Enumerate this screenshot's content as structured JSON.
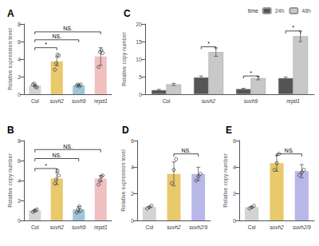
{
  "chart_data": [
    {
      "type": "bar",
      "title": "A",
      "ylabel": "Relative expression level",
      "categories": [
        "Col",
        "suvh2",
        "suvh9",
        "nrpd1"
      ],
      "values": [
        1.0,
        3.75,
        1.0,
        4.3
      ],
      "colors": [
        "#d3d3d3",
        "#e8c96b",
        "#9ec6d8",
        "#f0c0c0"
      ],
      "error": [
        0.1,
        0.5,
        0.1,
        1.0
      ],
      "dots": [
        {
          "values": [
            1.1,
            1.2,
            0.85,
            0.8
          ],
          "line_style": "solid"
        },
        {
          "values": [
            2.8,
            3.5,
            4.5,
            4.4
          ]
        },
        {
          "values": [
            1.0,
            1.1,
            0.9,
            1.1
          ],
          "line_style": "solid"
        },
        {
          "values": [
            3.1,
            4.8,
            5.0,
            4.7
          ]
        }
      ],
      "annotations": [
        {
          "x1": "Col",
          "x2": "suvh2",
          "y": 5.3,
          "text": "*"
        },
        {
          "x1": "Col",
          "x2": "suvh9",
          "y": 6.2,
          "text": "NS."
        },
        {
          "x1": "Col",
          "x2": "nrpd1",
          "y": 7.1,
          "text": "NS."
        }
      ],
      "ylim": [
        0,
        8
      ],
      "yticks": [
        0,
        2,
        4,
        6,
        8
      ],
      "grid": false
    },
    {
      "type": "bar",
      "title": "B",
      "ylabel": "Relative copy number",
      "categories": [
        "Col",
        "suvh2",
        "suvh9",
        "nrpd1"
      ],
      "values": [
        1.0,
        4.2,
        1.1,
        4.2
      ],
      "colors": [
        "#d3d3d3",
        "#e8c96b",
        "#9ec6d8",
        "#f0c0c0"
      ],
      "error": [
        0.1,
        0.6,
        0.3,
        0.3
      ],
      "dots": [
        {
          "values": [
            0.85,
            0.95,
            1.0,
            1.1
          ]
        },
        {
          "values": [
            3.7,
            4.1,
            5.0,
            4.5
          ]
        },
        {
          "values": [
            0.8,
            1.1,
            1.4,
            1.0
          ]
        },
        {
          "values": [
            3.6,
            4.0,
            4.4,
            4.5
          ]
        }
      ],
      "annotations": [
        {
          "x1": "Col",
          "x2": "suvh2",
          "y": 5.2,
          "text": "*"
        },
        {
          "x1": "Col",
          "x2": "suvh9",
          "y": 6.2,
          "text": "NS."
        },
        {
          "x1": "Col",
          "x2": "nrpd1",
          "y": 7.1,
          "text": "NS."
        }
      ],
      "ylim": [
        0,
        8
      ],
      "yticks": [
        0,
        2,
        4,
        6,
        8
      ],
      "grid": false
    },
    {
      "type": "bar",
      "title": "C",
      "ylabel": "Relative copy number",
      "categories": [
        "Col",
        "suvh2",
        "suvh9",
        "nrpd1"
      ],
      "series": [
        {
          "name": "24h",
          "color": "#555555",
          "values": [
            1.2,
            4.8,
            1.5,
            4.6
          ],
          "error": [
            0.2,
            0.4,
            0.2,
            0.3
          ]
        },
        {
          "name": "48h",
          "color": "#c8c8c8",
          "values": [
            2.8,
            12.0,
            4.6,
            16.5
          ],
          "error": [
            0.3,
            1.2,
            0.5,
            1.5
          ]
        }
      ],
      "annotations": [
        {
          "x": "suvh2",
          "y": 13.5,
          "text": "*"
        },
        {
          "x": "suvh9",
          "y": 5.2,
          "text": "*"
        },
        {
          "x": "nrpd1",
          "y": 18.0,
          "text": "*"
        }
      ],
      "legend": "upper right",
      "legend_title": "time",
      "ylim": [
        0,
        20
      ],
      "yticks": [
        0,
        5,
        10,
        15,
        20
      ],
      "grid": false
    },
    {
      "type": "bar",
      "title": "D",
      "ylabel": "Relative expression level",
      "categories": [
        "Col",
        "suvh2",
        "suvh2/9"
      ],
      "values": [
        1.0,
        3.5,
        3.5
      ],
      "colors": [
        "#d3d3d3",
        "#e8c96b",
        "#b8b8e8"
      ],
      "error": [
        0.05,
        0.9,
        0.5
      ],
      "dots": [
        {
          "values": [
            0.9,
            1.0,
            1.1
          ]
        },
        {
          "values": [
            2.8,
            3.8,
            4.6
          ]
        },
        {
          "values": [
            3.0,
            3.3,
            3.5
          ]
        }
      ],
      "annotations": [
        {
          "x1": "suvh2",
          "x2": "suvh2/9",
          "y": 5.0,
          "text": "NS."
        }
      ],
      "ylim": [
        0,
        6
      ],
      "yticks": [
        0,
        2,
        4,
        6
      ],
      "grid": false
    },
    {
      "type": "bar",
      "title": "E",
      "ylabel": "Relative copy number",
      "categories": [
        "Col",
        "suvh2",
        "suvh2/9"
      ],
      "values": [
        1.0,
        4.3,
        3.7
      ],
      "colors": [
        "#d3d3d3",
        "#e8c96b",
        "#b8b8e8"
      ],
      "error": [
        0.05,
        0.6,
        0.5
      ],
      "dots": [
        {
          "values": [
            0.9,
            1.0,
            1.1
          ]
        },
        {
          "values": [
            3.8,
            4.3,
            5.0
          ]
        },
        {
          "values": [
            3.4,
            3.6,
            3.8
          ]
        }
      ],
      "annotations": [
        {
          "x1": "suvh2",
          "x2": "suvh2/9",
          "y": 5.0,
          "text": "NS."
        }
      ],
      "ylim": [
        0,
        6
      ],
      "yticks": [
        0,
        2,
        4,
        6
      ],
      "grid": false
    }
  ]
}
